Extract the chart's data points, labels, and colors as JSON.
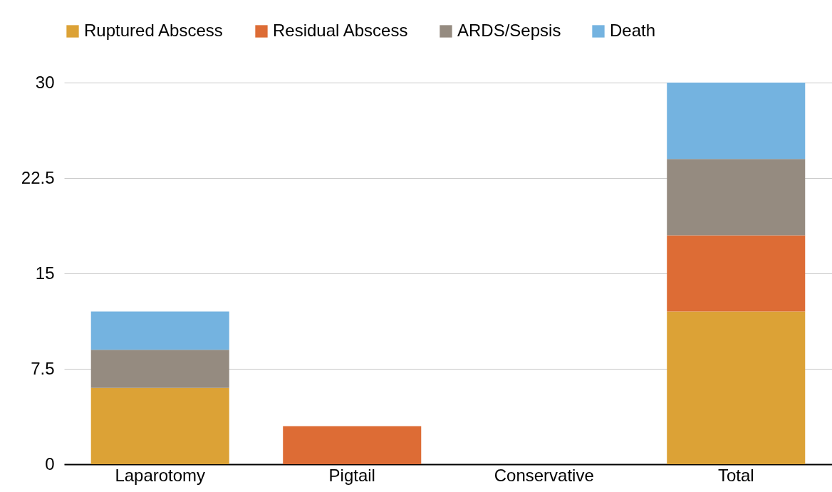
{
  "chart_data": {
    "type": "bar",
    "stacked": true,
    "categories": [
      "Laparotomy",
      "Pigtail",
      "Conservative",
      "Total"
    ],
    "series": [
      {
        "name": "Ruptured Abscess",
        "color": "#dca236",
        "values": [
          6,
          0,
          0,
          12
        ]
      },
      {
        "name": "Residual Abscess",
        "color": "#dd6c35",
        "values": [
          0,
          3,
          0,
          6
        ]
      },
      {
        "name": "ARDS/Sepsis",
        "color": "#958b80",
        "values": [
          3,
          0,
          0,
          6
        ]
      },
      {
        "name": "Death",
        "color": "#74b3e0",
        "values": [
          3,
          0,
          0,
          6
        ]
      }
    ],
    "ylim": [
      0,
      30
    ],
    "yticks": [
      0,
      7.5,
      15,
      22.5,
      30
    ],
    "grid": "y",
    "legend": "top"
  }
}
